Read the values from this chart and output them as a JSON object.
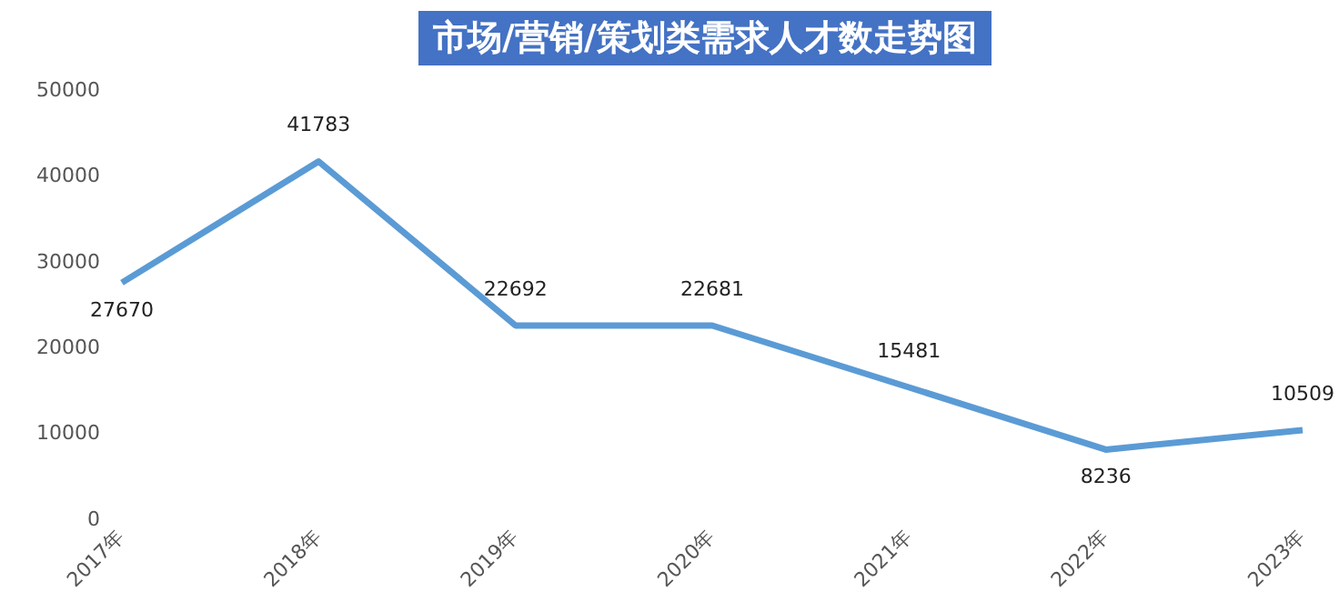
{
  "chart_data": {
    "type": "line",
    "title": "市场/营销/策划类需求人才数走势图",
    "categories": [
      "2017年",
      "2018年",
      "2019年",
      "2020年",
      "2021年",
      "2022年",
      "2023年"
    ],
    "series": [
      {
        "color": "#5b9bd5",
        "values": [
          27670,
          41783,
          22692,
          22681,
          15481,
          8236,
          10509
        ]
      }
    ],
    "ylim": [
      0,
      50000
    ],
    "yticks": [
      0,
      10000,
      20000,
      30000,
      40000,
      50000
    ],
    "grid": false,
    "legend": false,
    "marker": "none",
    "line_style": "solid",
    "data_labels": true
  }
}
